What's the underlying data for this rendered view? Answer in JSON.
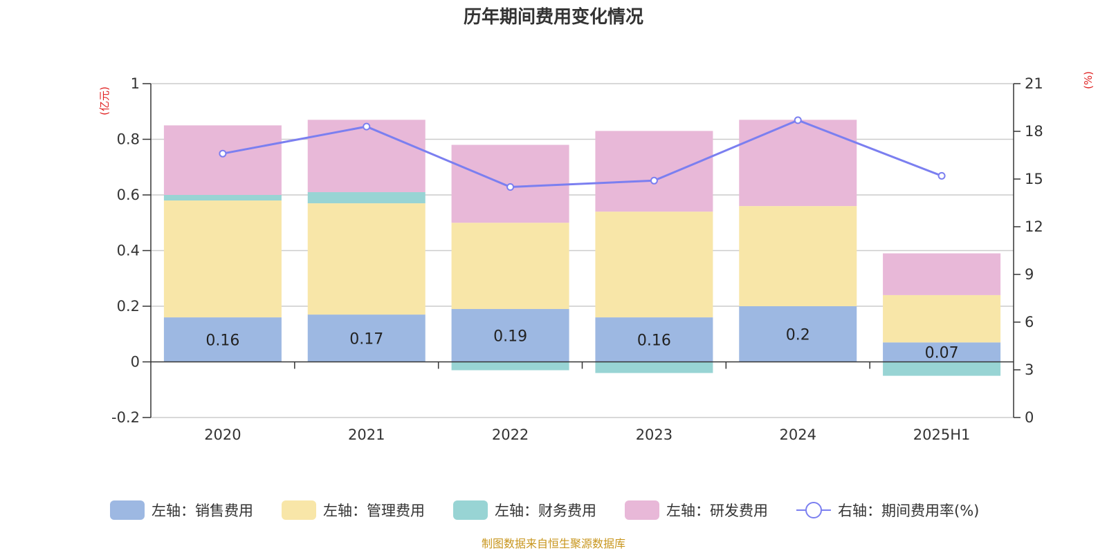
{
  "chart_data": {
    "type": "bar",
    "stacked": true,
    "title": "历年期间费用变化情况",
    "categories": [
      "2020",
      "2021",
      "2022",
      "2023",
      "2024",
      "2025H1"
    ],
    "left_axis": {
      "unit": "(亿元)",
      "ylim": [
        -0.2,
        1
      ],
      "ticks": [
        "1",
        "0.8",
        "0.6",
        "0.4",
        "0.2",
        "0",
        "-0.2"
      ],
      "tick_values": [
        1,
        0.8,
        0.6,
        0.4,
        0.2,
        0,
        -0.2
      ]
    },
    "right_axis": {
      "unit": "(%)",
      "ylim": [
        0,
        21
      ],
      "ticks": [
        "21",
        "18",
        "15",
        "12",
        "9",
        "6",
        "3",
        "0"
      ],
      "tick_values": [
        21,
        18,
        15,
        12,
        9,
        6,
        3,
        0
      ]
    },
    "grid": true,
    "series": [
      {
        "name": "左轴：销售费用",
        "axis": "left",
        "type": "bar",
        "color": "#9db8e2",
        "values": [
          0.16,
          0.17,
          0.19,
          0.16,
          0.2,
          0.07
        ],
        "labels": [
          "0.16",
          "0.17",
          "0.19",
          "0.16",
          "0.2",
          "0.07"
        ]
      },
      {
        "name": "左轴：管理费用",
        "axis": "left",
        "type": "bar",
        "color": "#f8e6a8",
        "values": [
          0.42,
          0.4,
          0.31,
          0.38,
          0.36,
          0.17
        ]
      },
      {
        "name": "左轴：财务费用",
        "axis": "left",
        "type": "bar",
        "color": "#98d4d4",
        "values": [
          0.02,
          0.04,
          -0.03,
          -0.04,
          0.0,
          -0.05
        ]
      },
      {
        "name": "左轴：研发费用",
        "axis": "left",
        "type": "bar",
        "color": "#e8b8d8",
        "values": [
          0.25,
          0.26,
          0.28,
          0.29,
          0.31,
          0.15
        ]
      },
      {
        "name": "右轴：期间费用率(%)",
        "axis": "right",
        "type": "line",
        "color": "#7b7ff0",
        "values": [
          16.6,
          18.3,
          14.5,
          14.9,
          18.7,
          15.2
        ]
      }
    ],
    "legend_position": "bottom-center"
  },
  "source_text": "制图数据来自恒生聚源数据库"
}
